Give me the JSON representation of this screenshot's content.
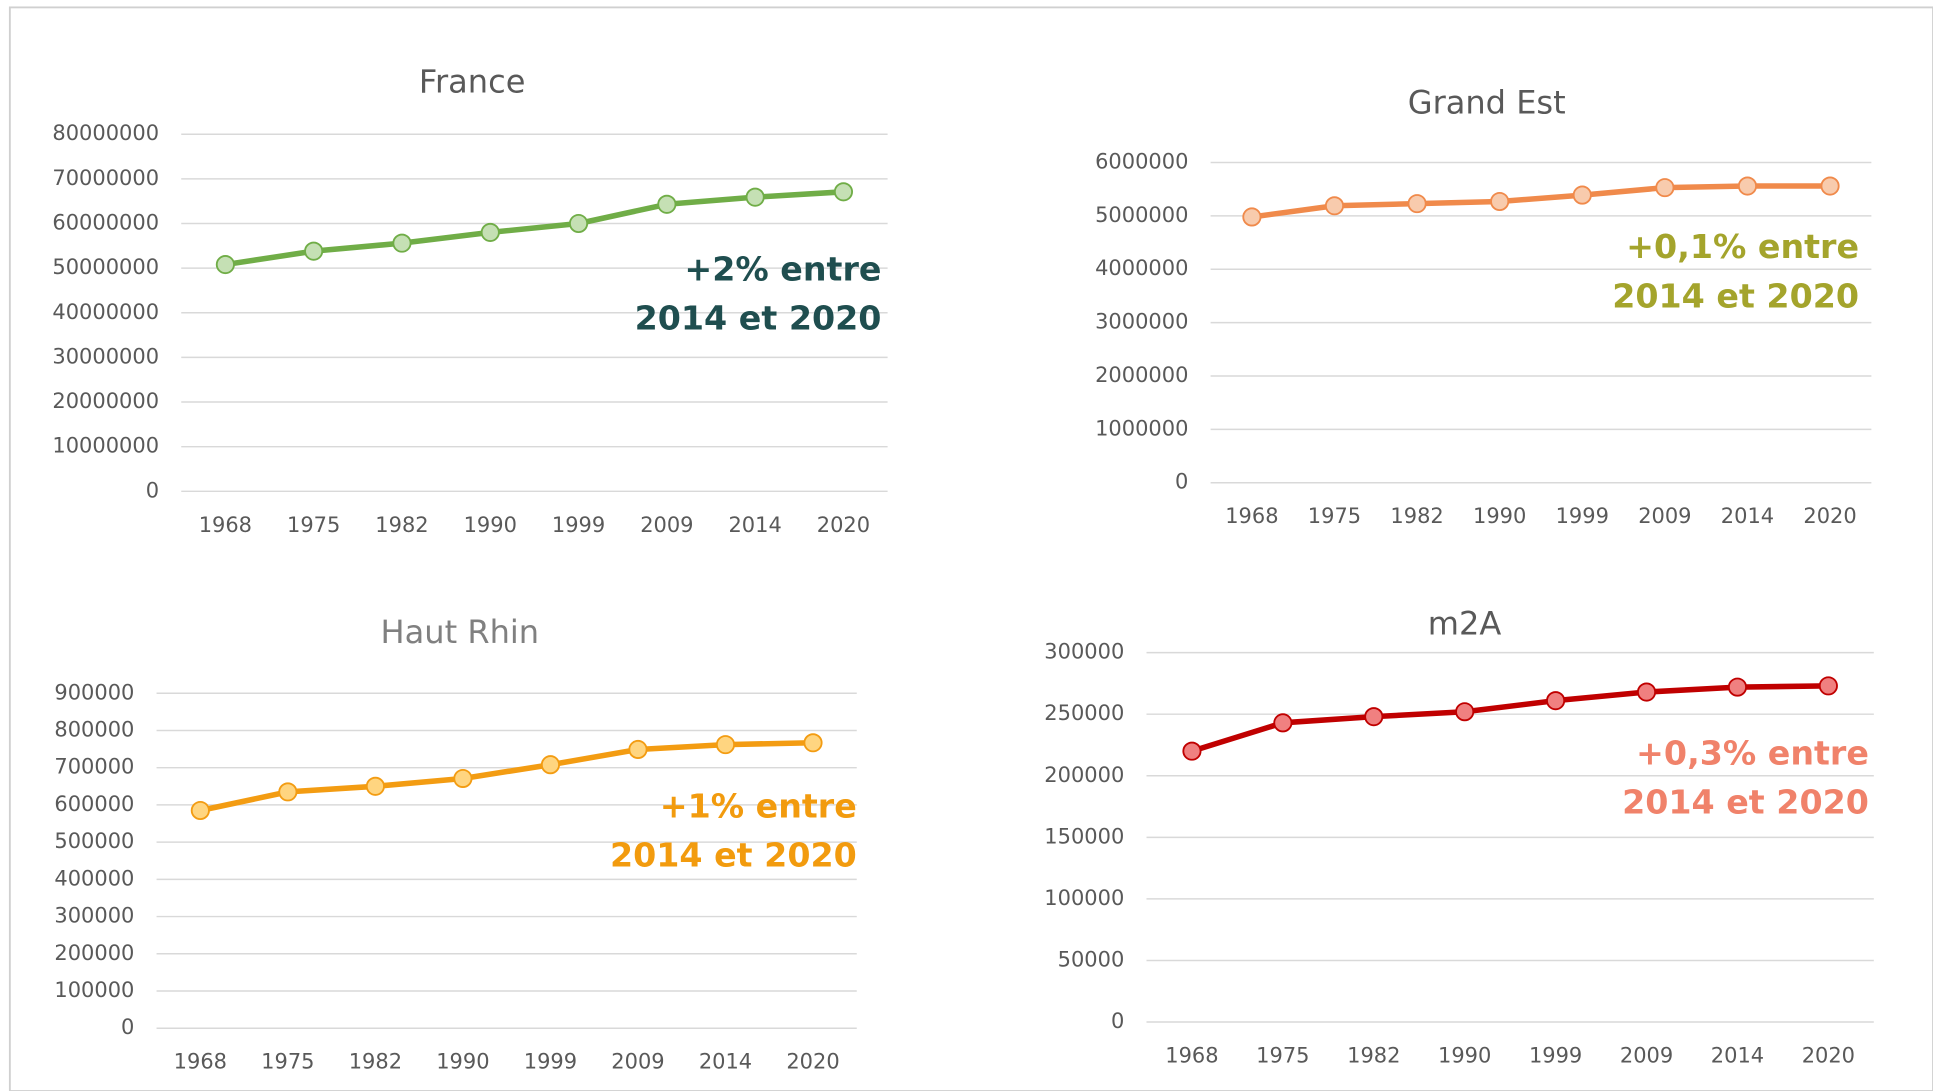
{
  "chart_data": [
    {
      "type": "line",
      "title": "France",
      "categories": [
        "1968",
        "1975",
        "1982",
        "1990",
        "1999",
        "2009",
        "2014",
        "2020"
      ],
      "values": [
        50800000,
        53800000,
        55600000,
        58000000,
        60000000,
        64300000,
        65900000,
        67100000
      ],
      "color": "#70ad47",
      "marker_color": "#c5e0b4",
      "ylim": [
        0,
        80000000
      ],
      "yticks": [
        0,
        10000000,
        20000000,
        30000000,
        40000000,
        50000000,
        60000000,
        70000000,
        80000000
      ],
      "grid": true,
      "annotation": [
        "+2% entre",
        "2014 et 2020"
      ],
      "annotation_color": "#1f4e4f"
    },
    {
      "type": "line",
      "title": "Grand Est",
      "categories": [
        "1968",
        "1975",
        "1982",
        "1990",
        "1999",
        "2009",
        "2014",
        "2020"
      ],
      "values": [
        4980000,
        5190000,
        5230000,
        5270000,
        5390000,
        5530000,
        5560000,
        5560000
      ],
      "color": "#f08a4b",
      "marker_color": "#f8cbad",
      "ylim": [
        0,
        6000000
      ],
      "yticks": [
        0,
        1000000,
        2000000,
        3000000,
        4000000,
        5000000,
        6000000
      ],
      "grid": true,
      "annotation": [
        "+0,1% entre",
        "2014 et 2020"
      ],
      "annotation_color": "#a4a42c"
    },
    {
      "type": "line",
      "title": "Haut Rhin",
      "categories": [
        "1968",
        "1975",
        "1982",
        "1990",
        "1999",
        "2009",
        "2014",
        "2020"
      ],
      "values": [
        585000,
        635000,
        650000,
        671000,
        708000,
        749000,
        762000,
        767000
      ],
      "color": "#f39c12",
      "marker_color": "#ffd580",
      "ylim": [
        0,
        900000
      ],
      "yticks": [
        0,
        100000,
        200000,
        300000,
        400000,
        500000,
        600000,
        700000,
        800000,
        900000
      ],
      "grid": true,
      "annotation": [
        "+1% entre",
        "2014 et 2020"
      ],
      "annotation_color": "#f29b0e"
    },
    {
      "type": "line",
      "title": "m2A",
      "categories": [
        "1968",
        "1975",
        "1982",
        "1990",
        "1999",
        "2009",
        "2014",
        "2020"
      ],
      "values": [
        220000,
        243000,
        248000,
        252000,
        261000,
        268000,
        272000,
        273000
      ],
      "color": "#c00000",
      "marker_color": "#f08080",
      "ylim": [
        0,
        300000
      ],
      "yticks": [
        0,
        50000,
        100000,
        150000,
        200000,
        250000,
        300000
      ],
      "grid": true,
      "annotation": [
        "+0,3% entre",
        "2014 et 2020"
      ],
      "annotation_color": "#f0826a"
    }
  ]
}
